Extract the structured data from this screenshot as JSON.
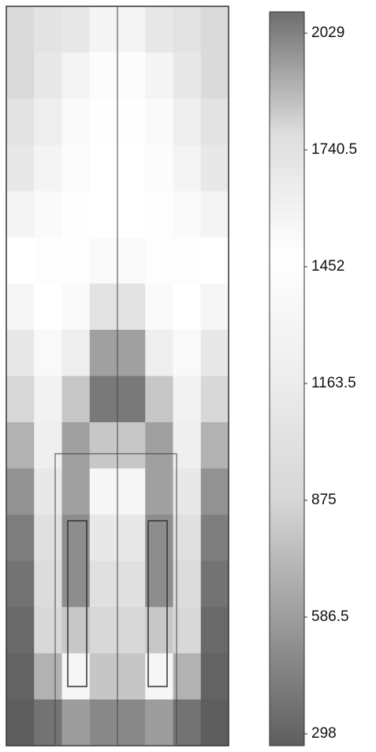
{
  "chart_data": {
    "type": "heatmap",
    "colorscale": [
      "#5e5e5e",
      "#9a9a9a",
      "#d6d6d6",
      "#ededed",
      "#ffffff",
      "#dedede",
      "#6e6e6e"
    ],
    "clim": [
      298,
      2029
    ],
    "cticks": [
      298,
      586.5,
      875,
      1163.5,
      1452,
      1740.5,
      2029
    ],
    "z": [
      [
        1750,
        1700,
        1650,
        1550,
        1550,
        1650,
        1700,
        1750
      ],
      [
        1750,
        1650,
        1550,
        1480,
        1480,
        1550,
        1650,
        1750
      ],
      [
        1700,
        1600,
        1500,
        1460,
        1460,
        1500,
        1600,
        1700
      ],
      [
        1650,
        1550,
        1480,
        1452,
        1452,
        1480,
        1550,
        1650
      ],
      [
        1550,
        1500,
        1460,
        1452,
        1452,
        1460,
        1500,
        1550
      ],
      [
        1450,
        1470,
        1470,
        1500,
        1500,
        1470,
        1470,
        1450
      ],
      [
        1300,
        1450,
        1500,
        1700,
        1700,
        1500,
        1450,
        1300
      ],
      [
        1100,
        1350,
        1600,
        1900,
        1900,
        1600,
        1350,
        1100
      ],
      [
        900,
        1250,
        1800,
        2000,
        2000,
        1800,
        1250,
        900
      ],
      [
        700,
        1200,
        1900,
        1800,
        1800,
        1900,
        1200,
        700
      ],
      [
        550,
        1100,
        1900,
        1300,
        1300,
        1900,
        1100,
        550
      ],
      [
        450,
        1000,
        1950,
        1100,
        1100,
        1950,
        1000,
        450
      ],
      [
        400,
        950,
        1950,
        1000,
        1000,
        1950,
        950,
        400
      ],
      [
        350,
        900,
        1800,
        900,
        900,
        1800,
        900,
        350
      ],
      [
        320,
        700,
        1300,
        800,
        800,
        1300,
        700,
        320
      ],
      [
        300,
        400,
        600,
        500,
        500,
        600,
        400,
        300
      ]
    ]
  }
}
